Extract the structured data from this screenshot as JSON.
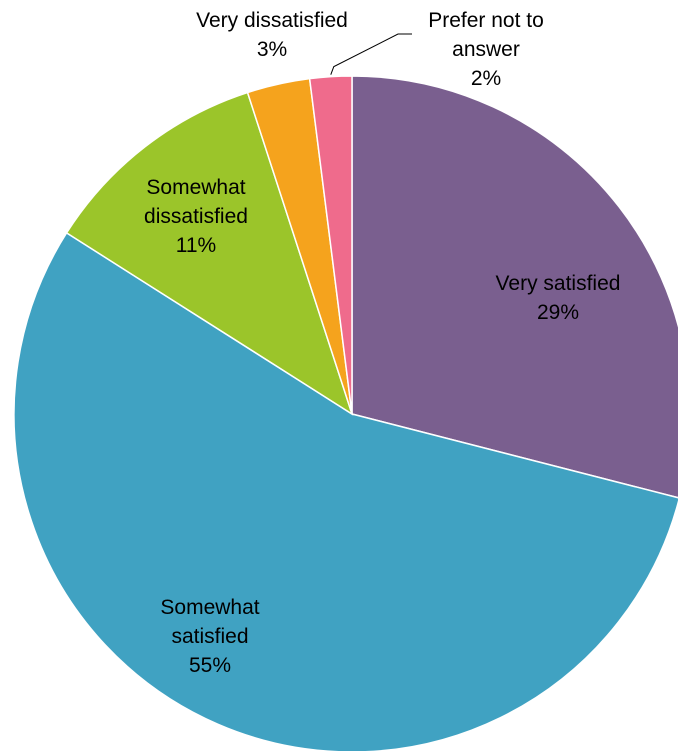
{
  "chart_data": {
    "type": "pie",
    "title": "",
    "slices": [
      {
        "label": [
          "Very satisfied"
        ],
        "value": 29,
        "value_label": "29%",
        "color": "#7a5f8f"
      },
      {
        "label": [
          "Somewhat",
          "satisfied"
        ],
        "value": 55,
        "value_label": "55%",
        "color": "#40a2c2"
      },
      {
        "label": [
          "Somewhat",
          "dissatisfied"
        ],
        "value": 11,
        "value_label": "11%",
        "color": "#9bc52a"
      },
      {
        "label": [
          "Very dissatisfied"
        ],
        "value": 3,
        "value_label": "3%",
        "color": "#f5a31d"
      },
      {
        "label": [
          "Prefer not to",
          "answer"
        ],
        "value": 2,
        "value_label": "2%",
        "color": "#ef6b8c"
      }
    ],
    "start_angle_deg": 0,
    "direction": "clockwise",
    "legend": "none",
    "data_labels": "category and percentage"
  }
}
